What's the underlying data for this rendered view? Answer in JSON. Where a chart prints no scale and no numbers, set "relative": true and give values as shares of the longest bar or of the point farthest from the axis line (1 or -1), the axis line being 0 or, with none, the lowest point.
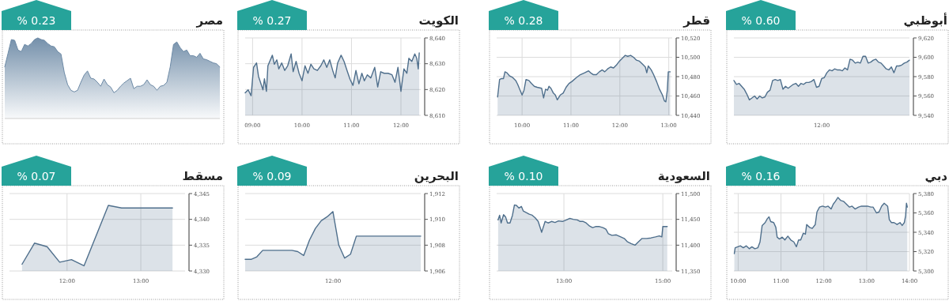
{
  "chart_data": [
    {
      "type": "area",
      "title": "مصر",
      "annotations": [
        "% 0.23"
      ],
      "relative": true,
      "categories": [
        null,
        null,
        null,
        null,
        null,
        null,
        null,
        null,
        null,
        null,
        null,
        null,
        null,
        null,
        null,
        null,
        null,
        null,
        null,
        null,
        null,
        null,
        null,
        null,
        null,
        null,
        null,
        null,
        null,
        null,
        null,
        null,
        null,
        null,
        null,
        null,
        null,
        null,
        null,
        null,
        null,
        null,
        null,
        null,
        null,
        null,
        null,
        null,
        null,
        null,
        null,
        null,
        null,
        null,
        null,
        null,
        null,
        null,
        null,
        null,
        null,
        null,
        null,
        null,
        null,
        null
      ],
      "series": [
        {
          "color": "#6d8aa6",
          "values": [
            0.64,
            0.81,
            0.98,
            0.97,
            0.85,
            0.83,
            0.92,
            0.9,
            0.93,
            0.98,
            1.0,
            0.98,
            0.97,
            0.93,
            0.9,
            0.89,
            0.83,
            0.8,
            0.57,
            0.42,
            0.35,
            0.33,
            0.35,
            0.45,
            0.54,
            0.59,
            0.5,
            0.49,
            0.45,
            0.4,
            0.49,
            0.42,
            0.39,
            0.32,
            0.35,
            0.4,
            0.44,
            0.47,
            0.5,
            0.37,
            0.4,
            0.4,
            0.42,
            0.48,
            0.42,
            0.4,
            0.35,
            0.4,
            0.41,
            0.45,
            0.64,
            0.92,
            0.95,
            0.88,
            0.83,
            0.85,
            0.78,
            0.78,
            0.76,
            0.81,
            0.74,
            0.73,
            0.71,
            0.69,
            0.68,
            0.64
          ]
        }
      ]
    },
    {
      "type": "area",
      "title": "الكويت",
      "annotations": [
        "% 0.27"
      ],
      "grid": true,
      "xlim": [
        8.85,
        12.4
      ],
      "ylim": [
        8610,
        8640
      ],
      "xticks": [
        {
          "value": 9,
          "label": "09:00"
        },
        {
          "value": 10,
          "label": "10:00"
        },
        {
          "value": 11,
          "label": "11:00"
        },
        {
          "value": 12,
          "label": "12:00"
        }
      ],
      "yticks": [
        {
          "value": 8610,
          "label": "8,610"
        },
        {
          "value": 8620,
          "label": "8,620"
        },
        {
          "value": 8630,
          "label": "8,630"
        },
        {
          "value": 8640,
          "label": "8,640"
        }
      ],
      "x": [
        8.85,
        8.91,
        8.97,
        9.02,
        9.08,
        9.12,
        9.16,
        9.21,
        9.24,
        9.28,
        9.31,
        9.4,
        9.44,
        9.49,
        9.53,
        9.59,
        9.65,
        9.71,
        9.78,
        9.82,
        9.88,
        9.94,
        10.0,
        10.06,
        10.12,
        10.18,
        10.24,
        10.31,
        10.38,
        10.44,
        10.5,
        10.56,
        10.62,
        10.67,
        10.72,
        10.79,
        10.85,
        10.91,
        10.97,
        11.03,
        11.09,
        11.15,
        11.21,
        11.26,
        11.32,
        11.39,
        11.47,
        11.53,
        11.59,
        11.66,
        11.74,
        11.82,
        11.88,
        11.94,
        12.0,
        12.06,
        12.12,
        12.16,
        12.22,
        12.28,
        12.32,
        12.35,
        12.37
      ],
      "series": [
        {
          "color": "#4f6f8c",
          "values": [
            8618.7,
            8619.9,
            8617.6,
            8628.6,
            8630.3,
            8625.1,
            8622.8,
            8619.9,
            8624.2,
            8619.3,
            8629.2,
            8633.3,
            8629.8,
            8631.5,
            8628.0,
            8630.3,
            8627.4,
            8629.2,
            8633.8,
            8626.9,
            8630.9,
            8626.3,
            8623.4,
            8629.2,
            8626.3,
            8629.8,
            8628.0,
            8627.4,
            8629.2,
            8631.5,
            8628.6,
            8631.5,
            8627.4,
            8624.5,
            8630.3,
            8633.3,
            8630.9,
            8627.4,
            8624.0,
            8621.6,
            8627.4,
            8622.2,
            8626.3,
            8623.4,
            8625.7,
            8624.5,
            8628.6,
            8621.0,
            8626.9,
            8626.3,
            8626.3,
            8625.7,
            8622.8,
            8628.6,
            8619.3,
            8628.0,
            8626.3,
            8632.1,
            8630.9,
            8633.8,
            8632.1,
            8628.0,
            8634.2
          ]
        }
      ]
    },
    {
      "type": "area",
      "title": "قطر",
      "annotations": [
        "% 0.28"
      ],
      "grid": true,
      "xlim": [
        9.48,
        13.07
      ],
      "ylim": [
        10440,
        10520
      ],
      "xticks": [
        {
          "value": 10,
          "label": "10:00"
        },
        {
          "value": 11,
          "label": "11:00"
        },
        {
          "value": 12,
          "label": "12:00"
        },
        {
          "value": 13,
          "label": "13:00"
        }
      ],
      "yticks": [
        {
          "value": 10440,
          "label": "10,440"
        },
        {
          "value": 10460,
          "label": "10,460"
        },
        {
          "value": 10480,
          "label": "10,480"
        },
        {
          "value": 10500,
          "label": "10,500"
        },
        {
          "value": 10520,
          "label": "10,520"
        }
      ],
      "x": [
        9.5,
        9.54,
        9.58,
        9.62,
        9.65,
        9.69,
        9.74,
        9.81,
        9.87,
        9.91,
        9.96,
        10.0,
        10.04,
        10.08,
        10.14,
        10.19,
        10.25,
        10.31,
        10.4,
        10.44,
        10.48,
        10.52,
        10.55,
        10.59,
        10.64,
        10.68,
        10.72,
        10.78,
        10.84,
        10.9,
        10.96,
        11.02,
        11.11,
        11.19,
        11.28,
        11.36,
        11.4,
        11.46,
        11.52,
        11.58,
        11.64,
        11.69,
        11.75,
        11.81,
        11.87,
        11.93,
        11.99,
        12.05,
        12.11,
        12.16,
        12.22,
        12.28,
        12.34,
        12.4,
        12.46,
        12.52,
        12.55,
        12.58,
        12.64,
        12.69,
        12.75,
        12.81,
        12.87,
        12.91,
        12.94,
        12.97,
        12.99,
        13.03
      ],
      "series": [
        {
          "color": "#4f6f8c",
          "values": [
            10459,
            10477,
            10478,
            10478,
            10485,
            10484,
            10481,
            10479,
            10476,
            10472,
            10466,
            10461,
            10466,
            10477,
            10476,
            10473,
            10470,
            10469,
            10468,
            10458,
            10467,
            10466,
            10470,
            10468,
            10463,
            10461,
            10456,
            10461,
            10463,
            10469,
            10473,
            10475,
            10479,
            10482,
            10484,
            10486,
            10484,
            10482,
            10482,
            10485,
            10487,
            10485,
            10488,
            10490,
            10489,
            10492,
            10496,
            10499,
            10502,
            10501,
            10502,
            10500,
            10497,
            10496,
            10493,
            10490,
            10484,
            10491,
            10487,
            10482,
            10475,
            10467,
            10461,
            10455,
            10454,
            10466,
            10485,
            10485
          ]
        }
      ]
    },
    {
      "type": "area",
      "title": "أبوظبي",
      "annotations": [
        "% 0.60",
        "12:00"
      ],
      "grid": true,
      "ylim": [
        9540,
        9620
      ],
      "yticks": [
        {
          "value": 9540,
          "label": "9,540"
        },
        {
          "value": 9560,
          "label": "9,560"
        },
        {
          "value": 9580,
          "label": "9,580"
        },
        {
          "value": 9600,
          "label": "9,600"
        },
        {
          "value": 9620,
          "label": "9,620"
        }
      ],
      "categories": [
        null,
        null,
        null,
        null,
        null,
        null,
        null,
        null,
        null,
        null,
        null,
        null,
        null,
        null,
        null,
        null,
        null,
        null,
        null,
        null,
        null,
        null,
        null,
        null,
        null,
        null,
        null,
        null,
        null,
        null,
        null,
        null,
        null,
        null,
        null,
        null,
        null,
        null,
        null,
        null,
        null,
        null,
        null,
        null,
        null,
        null,
        null,
        null,
        null,
        null,
        null,
        null,
        null,
        null,
        null,
        null,
        null,
        null,
        null,
        null,
        null,
        null,
        null,
        null,
        null,
        null,
        null,
        null,
        null
      ],
      "series": [
        {
          "color": "#4f6f8c",
          "values": [
            9576,
            9572,
            9573,
            9570,
            9567,
            9562,
            9556,
            9558,
            9560,
            9557,
            9560,
            9558,
            9559,
            9564,
            9566,
            9576,
            9577,
            9576,
            9577,
            9567,
            9570,
            9568,
            9570,
            9572,
            9573,
            9570,
            9573,
            9572,
            9574,
            9574,
            9575,
            9577,
            9569,
            9570,
            9578,
            9579,
            9584,
            9587,
            9586,
            9588,
            9587,
            9587,
            9586,
            9589,
            9587,
            9598,
            9597,
            9594,
            9595,
            9594,
            9601,
            9601,
            9594,
            9595,
            9597,
            9598,
            9595,
            9594,
            9591,
            9588,
            9587,
            9590,
            9584,
            9591,
            9591,
            9592,
            9594,
            9595,
            9597
          ]
        }
      ]
    },
    {
      "type": "area",
      "title": "مسقط",
      "annotations": [
        "% 0.07"
      ],
      "grid": true,
      "xlim": [
        11.22,
        13.6
      ],
      "ylim": [
        4330,
        4345
      ],
      "xticks": [
        {
          "value": 12,
          "label": "12:00"
        },
        {
          "value": 13,
          "label": "13:00"
        }
      ],
      "yticks": [
        {
          "value": 4330,
          "label": "4,330"
        },
        {
          "value": 4335,
          "label": "4,335"
        },
        {
          "value": 4340,
          "label": "4,340"
        },
        {
          "value": 4345,
          "label": "4,345"
        }
      ],
      "x": [
        11.39,
        11.56,
        11.73,
        11.9,
        12.06,
        12.23,
        12.56,
        12.74,
        13.43
      ],
      "series": [
        {
          "color": "#4f6f8c",
          "values": [
            4331.3,
            4335.4,
            4334.7,
            4331.7,
            4332.2,
            4331.0,
            4342.7,
            4342.2,
            4342.2
          ]
        }
      ]
    },
    {
      "type": "area",
      "title": "البحرين",
      "annotations": [
        "% 0.09",
        "12:00"
      ],
      "grid": true,
      "ylim": [
        1906,
        1912
      ],
      "yticks": [
        {
          "value": 1906,
          "label": "1,906"
        },
        {
          "value": 1908,
          "label": "1,908"
        },
        {
          "value": 1910,
          "label": "1,910"
        },
        {
          "value": 1912,
          "label": "1,912"
        }
      ],
      "categories": [
        null,
        null,
        null,
        null,
        null,
        null,
        null,
        null,
        null,
        null,
        null,
        null,
        null,
        null,
        null,
        null,
        null,
        null,
        null,
        null,
        null,
        null,
        null,
        null,
        null,
        null,
        null,
        null,
        null,
        null,
        null
      ],
      "series": [
        {
          "color": "#4f6f8c",
          "values": [
            1906.9,
            1906.9,
            1907.1,
            1907.6,
            1907.6,
            1907.6,
            1907.6,
            1907.6,
            1907.6,
            1907.5,
            1907.2,
            1908.4,
            1909.3,
            1909.9,
            1910.2,
            1910.6,
            1908.0,
            1907.0,
            1907.3,
            1908.7,
            1908.7,
            1908.7,
            1908.7,
            1908.7,
            1908.7,
            1908.7,
            1908.7,
            1908.7,
            1908.7,
            1908.7,
            1908.7
          ]
        }
      ]
    },
    {
      "type": "area",
      "title": "السعودية",
      "annotations": [
        "% 0.10"
      ],
      "grid": true,
      "xlim": [
        11.64,
        15.19
      ],
      "ylim": [
        11350,
        11500
      ],
      "xticks": [
        {
          "value": 13,
          "label": "13:00"
        },
        {
          "value": 15,
          "label": "15:00"
        }
      ],
      "yticks": [
        {
          "value": 11350,
          "label": "11,350"
        },
        {
          "value": 11400,
          "label": "11,400"
        },
        {
          "value": 11450,
          "label": "11,450"
        },
        {
          "value": 11500,
          "label": "11,500"
        }
      ],
      "x": [
        11.67,
        11.7,
        11.73,
        11.78,
        11.82,
        11.86,
        11.91,
        11.96,
        12.0,
        12.04,
        12.09,
        12.14,
        12.18,
        12.24,
        12.3,
        12.36,
        12.42,
        12.48,
        12.53,
        12.55,
        12.58,
        12.62,
        12.68,
        12.75,
        12.82,
        12.89,
        12.97,
        13.05,
        13.12,
        13.19,
        13.27,
        13.33,
        13.39,
        13.45,
        13.52,
        13.58,
        13.64,
        13.72,
        13.79,
        13.85,
        13.9,
        13.97,
        14.06,
        14.15,
        14.22,
        14.28,
        14.36,
        14.44,
        14.5,
        14.58,
        14.67,
        14.76,
        14.85,
        14.93,
        14.98,
        15.0,
        15.05,
        15.09
      ],
      "series": [
        {
          "color": "#4f6f8c",
          "values": [
            11449,
            11458,
            11443,
            11459,
            11455,
            11443,
            11443,
            11458,
            11478,
            11477,
            11472,
            11475,
            11466,
            11463,
            11460,
            11458,
            11453,
            11446,
            11431,
            11425,
            11434,
            11446,
            11443,
            11446,
            11444,
            11447,
            11446,
            11449,
            11452,
            11450,
            11449,
            11446,
            11446,
            11443,
            11437,
            11434,
            11436,
            11436,
            11434,
            11431,
            11422,
            11419,
            11420,
            11416,
            11413,
            11407,
            11403,
            11400,
            11406,
            11413,
            11413,
            11414,
            11416,
            11418,
            11416,
            11436,
            11436,
            11436
          ]
        }
      ]
    },
    {
      "type": "area",
      "title": "دبي",
      "annotations": [
        "% 0.16"
      ],
      "grid": true,
      "xlim": [
        9.9,
        14.0
      ],
      "ylim": [
        5300,
        5380
      ],
      "xticks": [
        {
          "value": 10,
          "label": "10:00"
        },
        {
          "value": 11,
          "label": "11:00"
        },
        {
          "value": 12,
          "label": "12:00"
        },
        {
          "value": 13,
          "label": "13:00"
        },
        {
          "value": 14,
          "label": "14:00"
        }
      ],
      "yticks": [
        {
          "value": 5300,
          "label": "5,300"
        },
        {
          "value": 5320,
          "label": "5,320"
        },
        {
          "value": 5340,
          "label": "5,340"
        },
        {
          "value": 5360,
          "label": "5,360"
        },
        {
          "value": 5380,
          "label": "5,380"
        }
      ],
      "x": [
        9.91,
        9.93,
        9.99,
        10.05,
        10.12,
        10.19,
        10.26,
        10.32,
        10.39,
        10.46,
        10.51,
        10.56,
        10.63,
        10.68,
        10.72,
        10.76,
        10.83,
        10.88,
        10.91,
        10.96,
        11.03,
        11.09,
        11.16,
        11.23,
        11.3,
        11.36,
        11.41,
        11.46,
        11.52,
        11.57,
        11.6,
        11.67,
        11.73,
        11.8,
        11.84,
        11.9,
        11.97,
        12.04,
        12.1,
        12.17,
        12.22,
        12.27,
        12.33,
        12.39,
        12.46,
        12.53,
        12.6,
        12.66,
        12.73,
        12.81,
        12.88,
        12.95,
        13.02,
        13.1,
        13.15,
        13.23,
        13.29,
        13.35,
        13.41,
        13.49,
        13.53,
        13.58,
        13.64,
        13.71,
        13.78,
        13.83,
        13.88,
        13.91,
        13.93,
        13.95
      ],
      "series": [
        {
          "color": "#4f6f8c",
          "values": [
            5318,
            5324,
            5325,
            5326,
            5324,
            5326,
            5323,
            5325,
            5323,
            5324,
            5330,
            5347,
            5350,
            5354,
            5356,
            5351,
            5350,
            5345,
            5335,
            5333,
            5335,
            5332,
            5336,
            5332,
            5330,
            5325,
            5332,
            5332,
            5339,
            5338,
            5348,
            5345,
            5344,
            5348,
            5361,
            5366,
            5367,
            5366,
            5367,
            5364,
            5369,
            5372,
            5376,
            5373,
            5372,
            5369,
            5366,
            5367,
            5364,
            5366,
            5367,
            5367,
            5367,
            5366,
            5366,
            5360,
            5361,
            5367,
            5370,
            5367,
            5353,
            5350,
            5350,
            5348,
            5350,
            5347,
            5350,
            5357,
            5370,
            5366
          ]
        }
      ]
    }
  ]
}
